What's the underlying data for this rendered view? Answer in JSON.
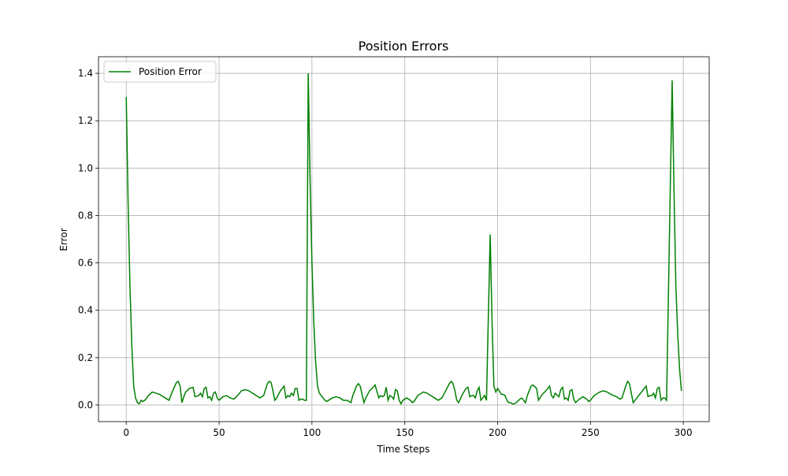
{
  "chart_data": {
    "type": "line",
    "title": "Position Errors",
    "xlabel": "Time Steps",
    "ylabel": "Error",
    "xlim": [
      -14.95,
      313.95
    ],
    "xticks": [
      0,
      50,
      100,
      150,
      200,
      250,
      300
    ],
    "ylim": [
      -0.07,
      1.47
    ],
    "yticks": [
      {
        "value": 0,
        "label": "0.0"
      },
      0.2,
      0.4,
      0.6,
      0.8,
      {
        "value": 1,
        "label": "1.0"
      },
      1.2,
      1.4
    ],
    "grid": true,
    "legend": "upper left",
    "x": [
      0,
      1,
      2,
      3,
      4,
      5,
      6,
      7,
      8,
      9,
      10,
      12,
      14,
      16,
      18,
      20,
      22,
      23,
      25,
      27,
      28,
      29,
      30,
      31,
      32,
      34,
      36,
      37,
      39,
      40,
      41,
      42,
      43,
      44,
      45,
      46,
      47,
      48,
      49,
      50,
      52,
      54,
      56,
      58,
      60,
      62,
      64,
      66,
      68,
      70,
      72,
      74,
      76,
      77,
      78,
      79,
      80,
      81,
      83,
      85,
      86,
      87,
      88,
      89,
      90,
      91,
      92,
      93,
      94,
      95,
      96,
      97,
      98,
      99,
      100,
      101,
      102,
      103,
      104,
      105,
      107,
      108,
      111,
      113,
      115,
      117,
      119,
      121,
      122,
      124,
      125,
      126,
      128,
      129,
      131,
      133,
      134,
      136,
      137,
      138,
      139,
      140,
      141,
      142,
      143,
      144,
      145,
      146,
      147,
      148,
      149,
      151,
      153,
      154,
      155,
      157,
      160,
      162,
      164,
      166,
      168,
      170,
      172,
      174,
      175,
      176,
      177,
      178,
      179,
      181,
      183,
      184,
      185,
      186,
      187,
      188,
      189,
      190,
      191,
      192,
      193,
      194,
      196,
      197,
      198,
      199,
      200,
      202,
      203,
      204,
      205,
      206,
      207,
      208,
      209,
      210,
      212,
      213,
      214,
      215,
      216,
      218,
      219,
      221,
      222,
      224,
      226,
      227,
      228,
      229,
      230,
      231,
      233,
      234,
      235,
      236,
      237,
      238,
      239,
      240,
      241,
      242,
      244,
      246,
      248,
      249,
      250,
      252,
      255,
      257,
      259,
      261,
      264,
      266,
      267,
      269,
      270,
      271,
      272,
      273,
      274,
      277,
      279,
      280,
      281,
      282,
      283,
      284,
      285,
      286,
      287,
      288,
      289,
      290,
      291,
      294,
      295,
      296,
      297,
      298,
      299
    ],
    "series": [
      {
        "name": "Position Error",
        "color": "#008000",
        "values": [
          1.3,
          0.85,
          0.5,
          0.25,
          0.08,
          0.03,
          0.01,
          0.005,
          0.02,
          0.015,
          0.02,
          0.04,
          0.055,
          0.05,
          0.045,
          0.035,
          0.025,
          0.02,
          0.06,
          0.095,
          0.1,
          0.08,
          0.01,
          0.035,
          0.055,
          0.07,
          0.075,
          0.035,
          0.04,
          0.05,
          0.035,
          0.07,
          0.075,
          0.03,
          0.035,
          0.02,
          0.05,
          0.055,
          0.03,
          0.02,
          0.035,
          0.04,
          0.03,
          0.025,
          0.04,
          0.06,
          0.065,
          0.06,
          0.05,
          0.04,
          0.03,
          0.04,
          0.09,
          0.1,
          0.095,
          0.06,
          0.02,
          0.03,
          0.06,
          0.08,
          0.03,
          0.04,
          0.035,
          0.05,
          0.04,
          0.07,
          0.07,
          0.02,
          0.025,
          0.025,
          0.02,
          0.02,
          1.4,
          0.95,
          0.6,
          0.35,
          0.18,
          0.08,
          0.05,
          0.04,
          0.02,
          0.015,
          0.03,
          0.035,
          0.03,
          0.02,
          0.02,
          0.01,
          0.04,
          0.08,
          0.09,
          0.08,
          0.01,
          0.03,
          0.06,
          0.075,
          0.085,
          0.03,
          0.04,
          0.035,
          0.04,
          0.075,
          0.02,
          0.04,
          0.035,
          0.025,
          0.065,
          0.06,
          0.02,
          0.005,
          0.02,
          0.03,
          0.02,
          0.01,
          0.015,
          0.04,
          0.055,
          0.05,
          0.04,
          0.03,
          0.02,
          0.03,
          0.06,
          0.09,
          0.1,
          0.09,
          0.06,
          0.02,
          0.01,
          0.045,
          0.07,
          0.075,
          0.035,
          0.04,
          0.04,
          0.03,
          0.06,
          0.075,
          0.02,
          0.03,
          0.04,
          0.02,
          0.72,
          0.35,
          0.08,
          0.055,
          0.07,
          0.045,
          0.045,
          0.04,
          0.02,
          0.01,
          0.01,
          0.005,
          0.005,
          0.01,
          0.025,
          0.03,
          0.02,
          0.01,
          0.04,
          0.08,
          0.085,
          0.07,
          0.02,
          0.045,
          0.06,
          0.07,
          0.08,
          0.04,
          0.03,
          0.05,
          0.035,
          0.065,
          0.075,
          0.025,
          0.03,
          0.02,
          0.06,
          0.065,
          0.025,
          0.01,
          0.025,
          0.035,
          0.025,
          0.015,
          0.02,
          0.04,
          0.055,
          0.06,
          0.055,
          0.045,
          0.035,
          0.025,
          0.03,
          0.08,
          0.1,
          0.09,
          0.05,
          0.01,
          0.02,
          0.05,
          0.07,
          0.08,
          0.035,
          0.04,
          0.04,
          0.05,
          0.03,
          0.07,
          0.075,
          0.02,
          0.03,
          0.03,
          0.02,
          1.37,
          0.9,
          0.5,
          0.3,
          0.15,
          0.06
        ]
      }
    ]
  }
}
